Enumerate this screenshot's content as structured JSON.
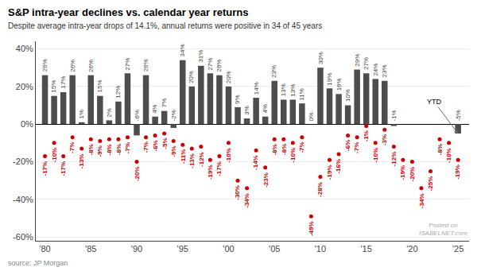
{
  "chart_data": {
    "type": "bar",
    "title": "S&P intra-year declines vs. calendar year returns",
    "subtitle": "Despite average intra-year drops of 14.1%, annual returns were positive in 34 of 45 years",
    "source": "source: JP Morgan",
    "x": [
      1980,
      1981,
      1982,
      1983,
      1984,
      1985,
      1986,
      1987,
      1988,
      1989,
      1990,
      1991,
      1992,
      1993,
      1994,
      1995,
      1996,
      1997,
      1998,
      1999,
      2000,
      2001,
      2002,
      2003,
      2004,
      2005,
      2006,
      2007,
      2008,
      2009,
      2010,
      2011,
      2012,
      2013,
      2014,
      2015,
      2016,
      2017,
      2018,
      2019,
      2020,
      2021,
      2022,
      2023,
      2024,
      2025
    ],
    "series": [
      {
        "type": "bar",
        "color": "#4d4d4d",
        "values": [
          26,
          15,
          17,
          26,
          1,
          26,
          15,
          2,
          12,
          27,
          -6,
          26,
          4,
          7,
          -2,
          34,
          20,
          31,
          27,
          26,
          20,
          9,
          3,
          14,
          4,
          23,
          13,
          13,
          11,
          0,
          30,
          19,
          16,
          10,
          29,
          27,
          24,
          23,
          -1,
          null,
          null,
          null,
          null,
          null,
          null,
          -5
        ],
        "value_labels": [
          "26%",
          "15%",
          "17%",
          "26%",
          "1%",
          "26%",
          "15%",
          "2%",
          "12%",
          "27%",
          "-6%",
          "26%",
          "4%",
          "7%",
          "-2%",
          "34%",
          "20%",
          "31%",
          "27%",
          "26%",
          "20%",
          "9%",
          "3%",
          "14%",
          "4%",
          "23%",
          "13%",
          "13%",
          "11%",
          "0%",
          "30%",
          "19%",
          "16%",
          "10%",
          "29%",
          "27%",
          "24%",
          "23%",
          "-1%",
          null,
          null,
          null,
          null,
          null,
          null,
          "-5%"
        ]
      },
      {
        "type": "scatter",
        "marker": "circle",
        "color": "#cc0000",
        "values": [
          -17,
          -10,
          -17,
          -7,
          -13,
          -8,
          -9,
          -8,
          -8,
          -7,
          -20,
          -7,
          -6,
          -5,
          -9,
          -11,
          -13,
          -12,
          -19,
          -17,
          -10,
          -30,
          -34,
          -14,
          -23,
          -8,
          -8,
          -10,
          -7,
          -49,
          -28,
          -19,
          -16,
          -6,
          -7,
          -1,
          -10,
          -3,
          -12,
          -19,
          -20,
          -34,
          -25,
          -8,
          -10,
          -19
        ],
        "value_labels": [
          "-17%",
          "-10%",
          "-17%",
          "-7%",
          "-13%",
          "-8%",
          "-9%",
          "-8%",
          "-8%",
          "-7%",
          "-20%",
          "-7%",
          "-6%",
          "-5%",
          "-9%",
          "-11%",
          "-13%",
          "-12%",
          "-19%",
          "-17%",
          "-10%",
          "-30%",
          "-34%",
          "-14%",
          "-23%",
          "-8%",
          "-8%",
          "-10%",
          "-7%",
          "-49%",
          "-28%",
          "-19%",
          "-16%",
          "-6%",
          "-7%",
          "-1%",
          "-10%",
          "-3%",
          "-12%",
          "-19%",
          "-20%",
          "-34%",
          "-25%",
          "-8%",
          "-10%",
          "-19%"
        ]
      }
    ],
    "xlim": [
      1979.0,
      2026.2
    ],
    "xticks": [
      {
        "value": 1980,
        "label": "'80"
      },
      {
        "value": 1985,
        "label": "'85"
      },
      {
        "value": 1990,
        "label": "'90"
      },
      {
        "value": 1995,
        "label": "'95"
      },
      {
        "value": 2000,
        "label": "'00"
      },
      {
        "value": 2005,
        "label": "'05"
      },
      {
        "value": 2010,
        "label": "'10"
      },
      {
        "value": 2015,
        "label": "'15"
      },
      {
        "value": 2020,
        "label": "'20"
      },
      {
        "value": 2025,
        "label": "'25"
      }
    ],
    "ylim": [
      -62,
      44
    ],
    "yticks": [
      {
        "value": -60,
        "label": "-60%"
      },
      {
        "value": -40,
        "label": "-40%"
      },
      {
        "value": -20,
        "label": "-20%"
      },
      {
        "value": 0,
        "label": "0%"
      },
      {
        "value": 20,
        "label": "20%"
      },
      {
        "value": 40,
        "label": "40%"
      }
    ],
    "grid": true,
    "data_labels": true,
    "annotations": [
      {
        "text": "YTD",
        "x": 2025,
        "y": -5
      },
      {
        "text": "Posted on\nISABELNET.com"
      }
    ]
  }
}
